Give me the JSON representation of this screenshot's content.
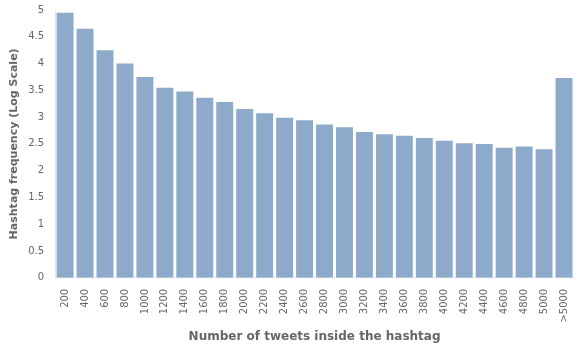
{
  "chart_data": {
    "type": "bar",
    "categories": [
      "200",
      "400",
      "600",
      "800",
      "1000",
      "1200",
      "1400",
      "1600",
      "1800",
      "2000",
      "2200",
      "2400",
      "2600",
      "2800",
      "3000",
      "3200",
      "3400",
      "3600",
      "3800",
      "4000",
      "4200",
      "4400",
      "4600",
      "4800",
      "5000",
      ">5000"
    ],
    "values": [
      4.95,
      4.65,
      4.25,
      4.0,
      3.75,
      3.55,
      3.48,
      3.36,
      3.28,
      3.15,
      3.07,
      2.99,
      2.94,
      2.86,
      2.81,
      2.72,
      2.68,
      2.65,
      2.61,
      2.56,
      2.51,
      2.5,
      2.43,
      2.45,
      2.4,
      3.73
    ],
    "color": "#8EAACB",
    "xlabel": "Number of tweets inside the hashtag",
    "ylabel": "Hashtag frequency (Log Scale)",
    "ylim": [
      0,
      5
    ],
    "yticks": [
      0,
      0.5,
      1,
      1.5,
      2,
      2.5,
      3,
      3.5,
      4,
      4.5,
      5
    ],
    "grid": false
  }
}
